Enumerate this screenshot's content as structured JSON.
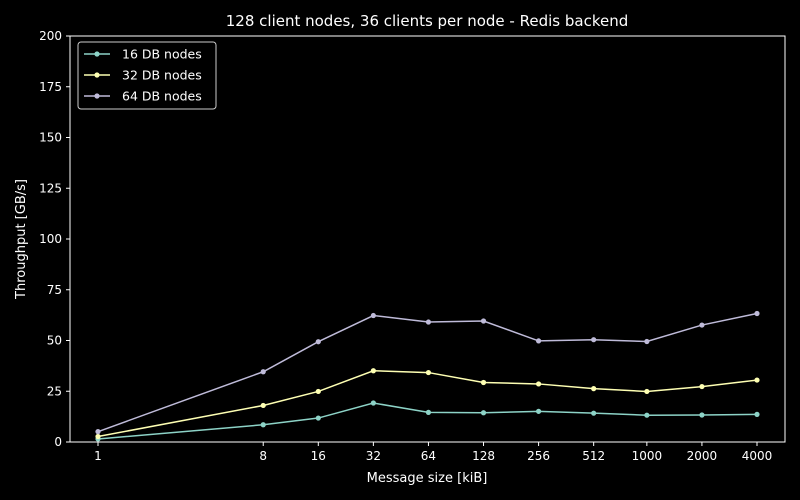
{
  "chart_data": {
    "type": "line",
    "title": "128 client nodes, 36 clients per node - Redis backend",
    "xlabel": "Message size [kiB]",
    "ylabel": "Throughput [GB/s]",
    "x_scale": "log2",
    "categories": [
      "1",
      "8",
      "16",
      "32",
      "64",
      "128",
      "256",
      "512",
      "1000",
      "2000",
      "4000"
    ],
    "x": [
      1,
      8,
      16,
      32,
      64,
      128,
      256,
      512,
      1000,
      2000,
      4000
    ],
    "yticks": [
      "0",
      "25",
      "50",
      "75",
      "100",
      "125",
      "150",
      "175",
      "200"
    ],
    "ylim": [
      0,
      200
    ],
    "grid": false,
    "legend_position": "top-left",
    "series": [
      {
        "name": "16 DB nodes",
        "color": "#8dd3c7",
        "values": [
          1.5,
          8.5,
          11.8,
          19.2,
          14.6,
          14.4,
          15.1,
          14.2,
          13.2,
          13.3,
          13.6
        ]
      },
      {
        "name": "32 DB nodes",
        "color": "#feffb3",
        "values": [
          2.7,
          18.0,
          24.9,
          35.1,
          34.2,
          29.3,
          28.6,
          26.3,
          24.9,
          27.3,
          30.5
        ]
      },
      {
        "name": "64 DB nodes",
        "color": "#bfbbd9",
        "values": [
          5.1,
          34.6,
          49.4,
          62.3,
          59.1,
          59.6,
          49.8,
          50.4,
          49.5,
          57.6,
          63.3
        ]
      }
    ]
  }
}
